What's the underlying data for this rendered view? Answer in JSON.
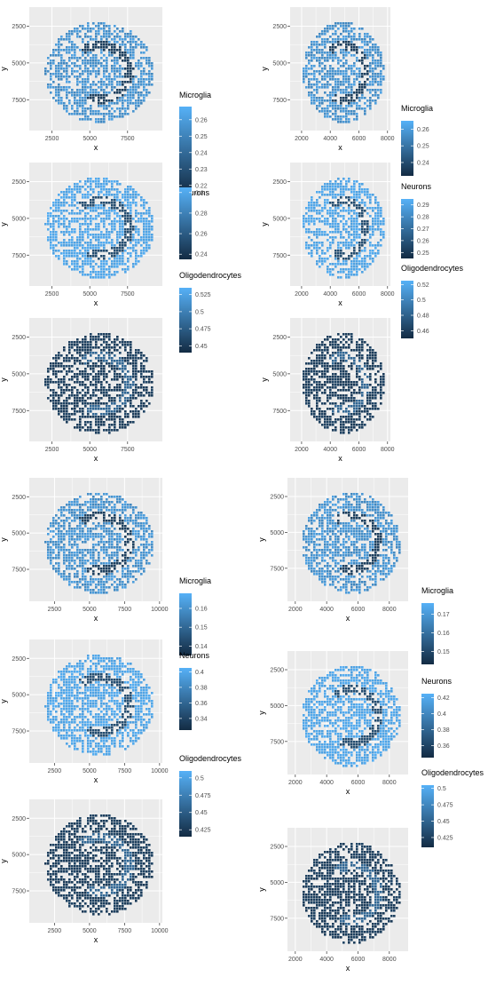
{
  "chart_data": [
    {
      "type": "heatmap",
      "title": "",
      "xlabel": "x",
      "ylabel": "y",
      "xlim": [
        1000,
        9800
      ],
      "ylim": [
        9600,
        1200
      ],
      "xticks": [
        2500,
        5000,
        7500
      ],
      "yticks": [
        2500,
        5000,
        7500
      ],
      "legend": {
        "title": "Microglia",
        "ticks": [
          0.26,
          0.25,
          0.24,
          0.23,
          0.22
        ],
        "range": [
          0.215,
          0.268
        ],
        "placement": "right"
      }
    },
    {
      "type": "heatmap",
      "title": "",
      "xlabel": "x",
      "ylabel": "y",
      "xlim": [
        1000,
        9800
      ],
      "ylim": [
        9600,
        1200
      ],
      "xticks": [
        2500,
        5000,
        7500
      ],
      "yticks": [
        2500,
        5000,
        7500
      ],
      "legend": {
        "title": "Neurons",
        "ticks": [
          0.3,
          0.28,
          0.26,
          0.24
        ],
        "range": [
          0.235,
          0.305
        ],
        "placement": "right"
      }
    },
    {
      "type": "heatmap",
      "title": "",
      "xlabel": "x",
      "ylabel": "y",
      "xlim": [
        1000,
        9800
      ],
      "ylim": [
        9600,
        1200
      ],
      "xticks": [
        2500,
        5000,
        7500
      ],
      "yticks": [
        2500,
        5000,
        7500
      ],
      "legend": {
        "title": "Oligodendrocytes",
        "ticks": [
          0.525,
          0.5,
          0.475,
          0.45
        ],
        "range": [
          0.44,
          0.535
        ],
        "placement": "right"
      }
    },
    {
      "type": "heatmap",
      "title": "",
      "xlabel": "x",
      "ylabel": "y",
      "xlim": [
        1200,
        8200
      ],
      "ylim": [
        9600,
        1200
      ],
      "xticks": [
        2000,
        4000,
        6000,
        8000
      ],
      "yticks": [
        2500,
        5000,
        7500
      ],
      "legend": {
        "title": "Microglia",
        "ticks": [
          0.26,
          0.25,
          0.24
        ],
        "range": [
          0.232,
          0.265
        ],
        "placement": "right"
      }
    },
    {
      "type": "heatmap",
      "title": "",
      "xlabel": "x",
      "ylabel": "y",
      "xlim": [
        1200,
        8200
      ],
      "ylim": [
        9600,
        1200
      ],
      "xticks": [
        2000,
        4000,
        6000,
        8000
      ],
      "yticks": [
        2500,
        5000,
        7500
      ],
      "legend": {
        "title": "Neurons",
        "ticks": [
          0.29,
          0.28,
          0.27,
          0.26,
          0.25
        ],
        "range": [
          0.245,
          0.295
        ],
        "placement": "right"
      }
    },
    {
      "type": "heatmap",
      "title": "",
      "xlabel": "x",
      "ylabel": "y",
      "xlim": [
        1200,
        8200
      ],
      "ylim": [
        9600,
        1200
      ],
      "xticks": [
        2000,
        4000,
        6000,
        8000
      ],
      "yticks": [
        2500,
        5000,
        7500
      ],
      "legend": {
        "title": "Oligodendrocytes",
        "ticks": [
          0.52,
          0.5,
          0.48,
          0.46
        ],
        "range": [
          0.45,
          0.525
        ],
        "placement": "right"
      }
    },
    {
      "type": "heatmap",
      "title": "",
      "xlabel": "x",
      "ylabel": "y",
      "xlim": [
        700,
        10200
      ],
      "ylim": [
        9700,
        1200
      ],
      "xticks": [
        2500,
        5000,
        7500,
        10000
      ],
      "yticks": [
        2500,
        5000,
        7500
      ],
      "legend": {
        "title": "Microglia",
        "ticks": [
          0.16,
          0.15,
          0.14
        ],
        "range": [
          0.135,
          0.168
        ],
        "placement": "right"
      }
    },
    {
      "type": "heatmap",
      "title": "",
      "xlabel": "x",
      "ylabel": "y",
      "xlim": [
        700,
        10200
      ],
      "ylim": [
        9700,
        1200
      ],
      "xticks": [
        2500,
        5000,
        7500,
        10000
      ],
      "yticks": [
        2500,
        5000,
        7500
      ],
      "legend": {
        "title": "Neurons",
        "ticks": [
          0.4,
          0.38,
          0.36,
          0.34
        ],
        "range": [
          0.325,
          0.405
        ],
        "placement": "right"
      }
    },
    {
      "type": "heatmap",
      "title": "",
      "xlabel": "x",
      "ylabel": "y",
      "xlim": [
        700,
        10200
      ],
      "ylim": [
        9700,
        1200
      ],
      "xticks": [
        2500,
        5000,
        7500,
        10000
      ],
      "yticks": [
        2500,
        5000,
        7500
      ],
      "legend": {
        "title": "Oligodendrocytes",
        "ticks": [
          0.5,
          0.475,
          0.45,
          0.425
        ],
        "range": [
          0.415,
          0.51
        ],
        "placement": "right"
      }
    },
    {
      "type": "heatmap",
      "title": "",
      "xlabel": "x",
      "ylabel": "y",
      "xlim": [
        1500,
        9200
      ],
      "ylim": [
        9800,
        1200
      ],
      "xticks": [
        2000,
        4000,
        6000,
        8000
      ],
      "yticks": [
        2500,
        5000,
        7500
      ],
      "legend": {
        "title": "Microglia",
        "ticks": [
          0.17,
          0.16,
          0.15
        ],
        "range": [
          0.143,
          0.176
        ],
        "placement": "right"
      }
    },
    {
      "type": "heatmap",
      "title": "",
      "xlabel": "x",
      "ylabel": "y",
      "xlim": [
        1500,
        9200
      ],
      "ylim": [
        9800,
        1200
      ],
      "xticks": [
        2000,
        4000,
        6000,
        8000
      ],
      "yticks": [
        2500,
        5000,
        7500
      ],
      "legend": {
        "title": "Neurons",
        "ticks": [
          0.42,
          0.4,
          0.38,
          0.36
        ],
        "range": [
          0.345,
          0.425
        ],
        "placement": "right"
      }
    },
    {
      "type": "heatmap",
      "title": "",
      "xlabel": "x",
      "ylabel": "y",
      "xlim": [
        1500,
        9200
      ],
      "ylim": [
        9800,
        1200
      ],
      "xticks": [
        2000,
        4000,
        6000,
        8000
      ],
      "yticks": [
        2500,
        5000,
        7500
      ],
      "legend": {
        "title": "Oligodendrocytes",
        "ticks": [
          0.5,
          0.475,
          0.45,
          0.425
        ],
        "range": [
          0.41,
          0.505
        ],
        "placement": "right"
      }
    }
  ],
  "colors": {
    "panel": "#ebebeb",
    "grid": "#ffffff",
    "low": "#132b43",
    "high": "#56b1f7",
    "axis_text": "#4d4d4d",
    "title_text": "#000000"
  }
}
